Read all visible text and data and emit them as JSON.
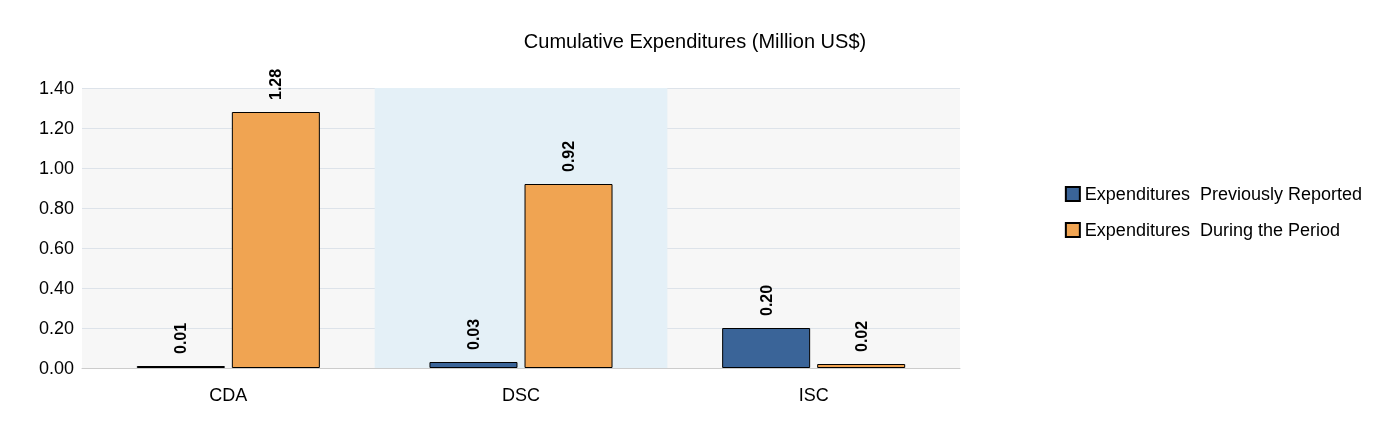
{
  "chart_data": {
    "type": "bar",
    "title": "Cumulative Expenditures (Million US$)",
    "categories": [
      "CDA",
      "DSC",
      "ISC"
    ],
    "series": [
      {
        "name": "Expenditures  Previously Reported",
        "color": "#3a6498",
        "values": [
          0.01,
          0.03,
          0.2
        ],
        "value_labels": [
          "0.01",
          "0.03",
          "0.20"
        ]
      },
      {
        "name": "Expenditures  During the Period",
        "color": "#f0a452",
        "values": [
          1.28,
          0.92,
          0.02
        ],
        "value_labels": [
          "1.28",
          "0.92",
          "0.02"
        ]
      }
    ],
    "ylim": [
      0,
      1.4
    ],
    "yticks": [
      {
        "value": 0,
        "label": "0.00"
      },
      {
        "value": 0.2,
        "label": "0.20"
      },
      {
        "value": 0.4,
        "label": "0.40"
      },
      {
        "value": 0.6,
        "label": "0.60"
      },
      {
        "value": 0.8,
        "label": "0.80"
      },
      {
        "value": 1,
        "label": "1.00"
      },
      {
        "value": 1.2,
        "label": "1.20"
      },
      {
        "value": 1.4,
        "label": "1.40"
      }
    ],
    "bands": [
      {
        "axis": "x",
        "from": "DSC",
        "to": "DSC",
        "color": "#e4f0f7"
      }
    ],
    "grid": "y",
    "legend": "right"
  }
}
